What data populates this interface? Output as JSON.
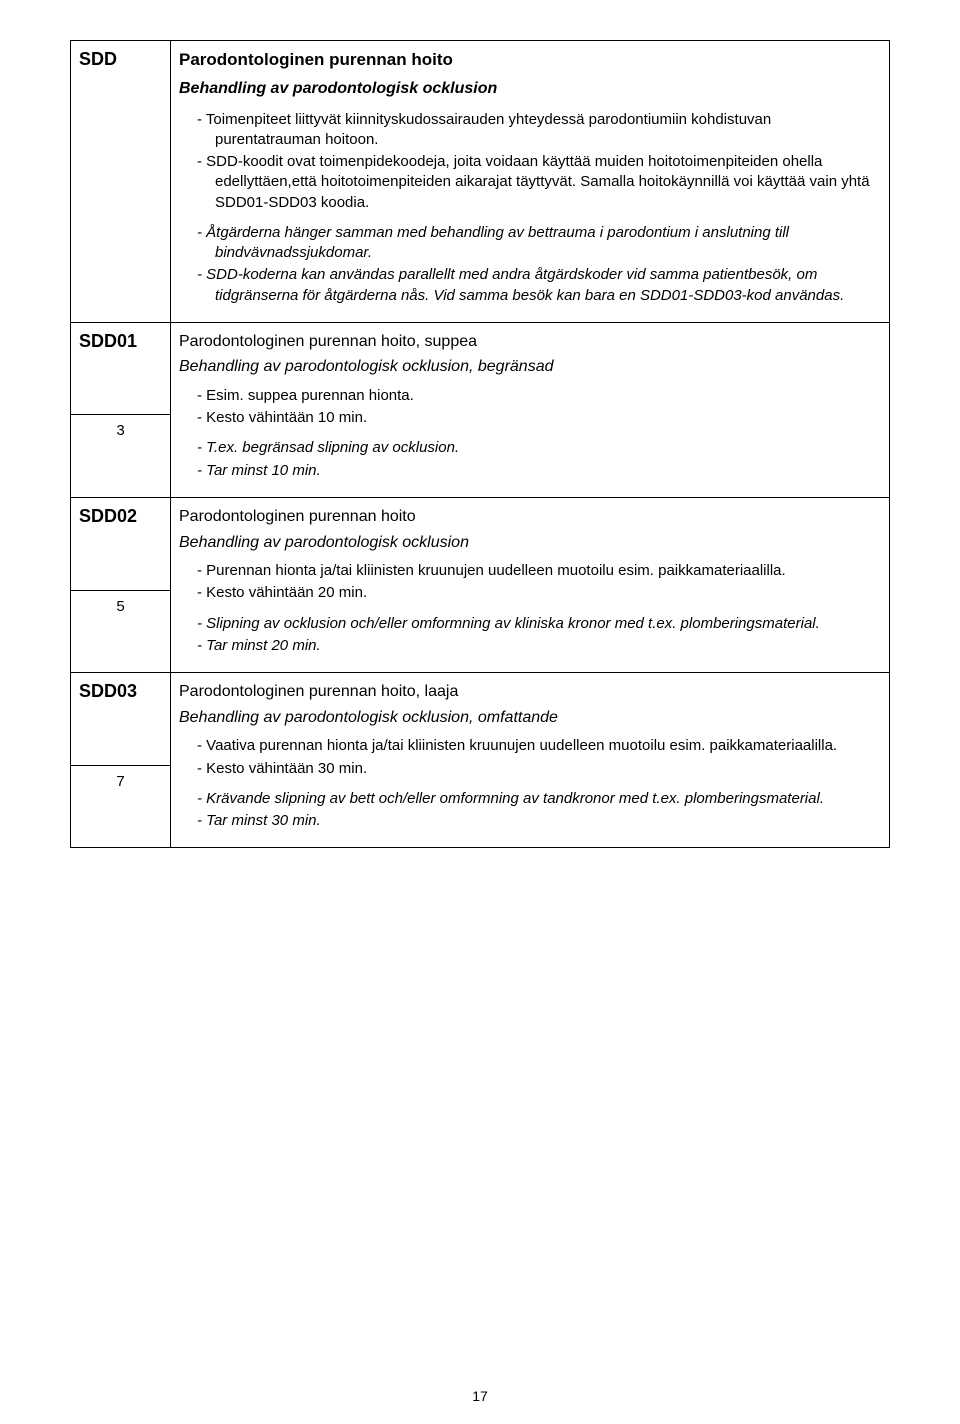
{
  "page_number": "17",
  "sections": {
    "sdd": {
      "code": "SDD",
      "title_fi": "Parodontologinen purennan hoito",
      "title_sv": "Behandling av parodontologisk ocklusion",
      "bullets_fi": [
        "Toimenpiteet liittyvät kiinnityskudossairauden yhteydessä parodontiumiin kohdistuvan purentatrauman hoitoon.",
        "SDD-koodit ovat toimenpidekoodeja, joita voidaan käyttää muiden hoitotoimenpiteiden ohella edellyttäen,että hoitotoimenpiteiden aikarajat täyttyvät. Samalla hoitokäynnillä voi käyttää vain yhtä SDD01-SDD03 koodia."
      ],
      "bullets_sv": [
        "Åtgärderna hänger samman med behandling av bettrauma i parodontium i anslutning till bindvävnadssjukdomar.",
        "SDD-koderna kan användas parallellt med andra åtgärdskoder vid samma patientbesök, om tidgränserna för åtgärderna nås. Vid samma besök kan bara en SDD01-SDD03-kod användas."
      ]
    },
    "sdd01": {
      "code": "SDD01",
      "num": "3",
      "subtitle_fi": "Parodontologinen purennan hoito, suppea",
      "subtitle_sv": "Behandling av parodontologisk ocklusion, begränsad",
      "bullets_fi": [
        "Esim. suppea purennan hionta.",
        "Kesto vähintään 10 min."
      ],
      "bullets_sv": [
        "T.ex. begränsad slipning av ocklusion.",
        "Tar minst 10 min."
      ]
    },
    "sdd02": {
      "code": "SDD02",
      "num": "5",
      "subtitle_fi": "Parodontologinen purennan hoito",
      "subtitle_sv": "Behandling av parodontologisk ocklusion",
      "bullets_fi": [
        "Purennan hionta ja/tai kliinisten kruunujen uudelleen muotoilu esim. paikkamateriaalilla.",
        "Kesto vähintään 20 min."
      ],
      "bullets_sv": [
        "Slipning av ocklusion och/eller omformning av kliniska kronor med t.ex. plomberingsmaterial.",
        "Tar minst 20 min."
      ]
    },
    "sdd03": {
      "code": "SDD03",
      "num": "7",
      "subtitle_fi": "Parodontologinen purennan hoito, laaja",
      "subtitle_sv": "Behandling av parodontologisk ocklusion, omfattande",
      "bullets_fi": [
        "Vaativa purennan hionta ja/tai kliinisten kruunujen uudelleen muotoilu esim. paikkamateriaalilla.",
        "Kesto vähintään 30 min."
      ],
      "bullets_sv": [
        "Krävande slipning av bett och/eller omformning av tandkronor med t.ex. plomberingsmaterial.",
        "Tar minst 30 min."
      ]
    }
  }
}
